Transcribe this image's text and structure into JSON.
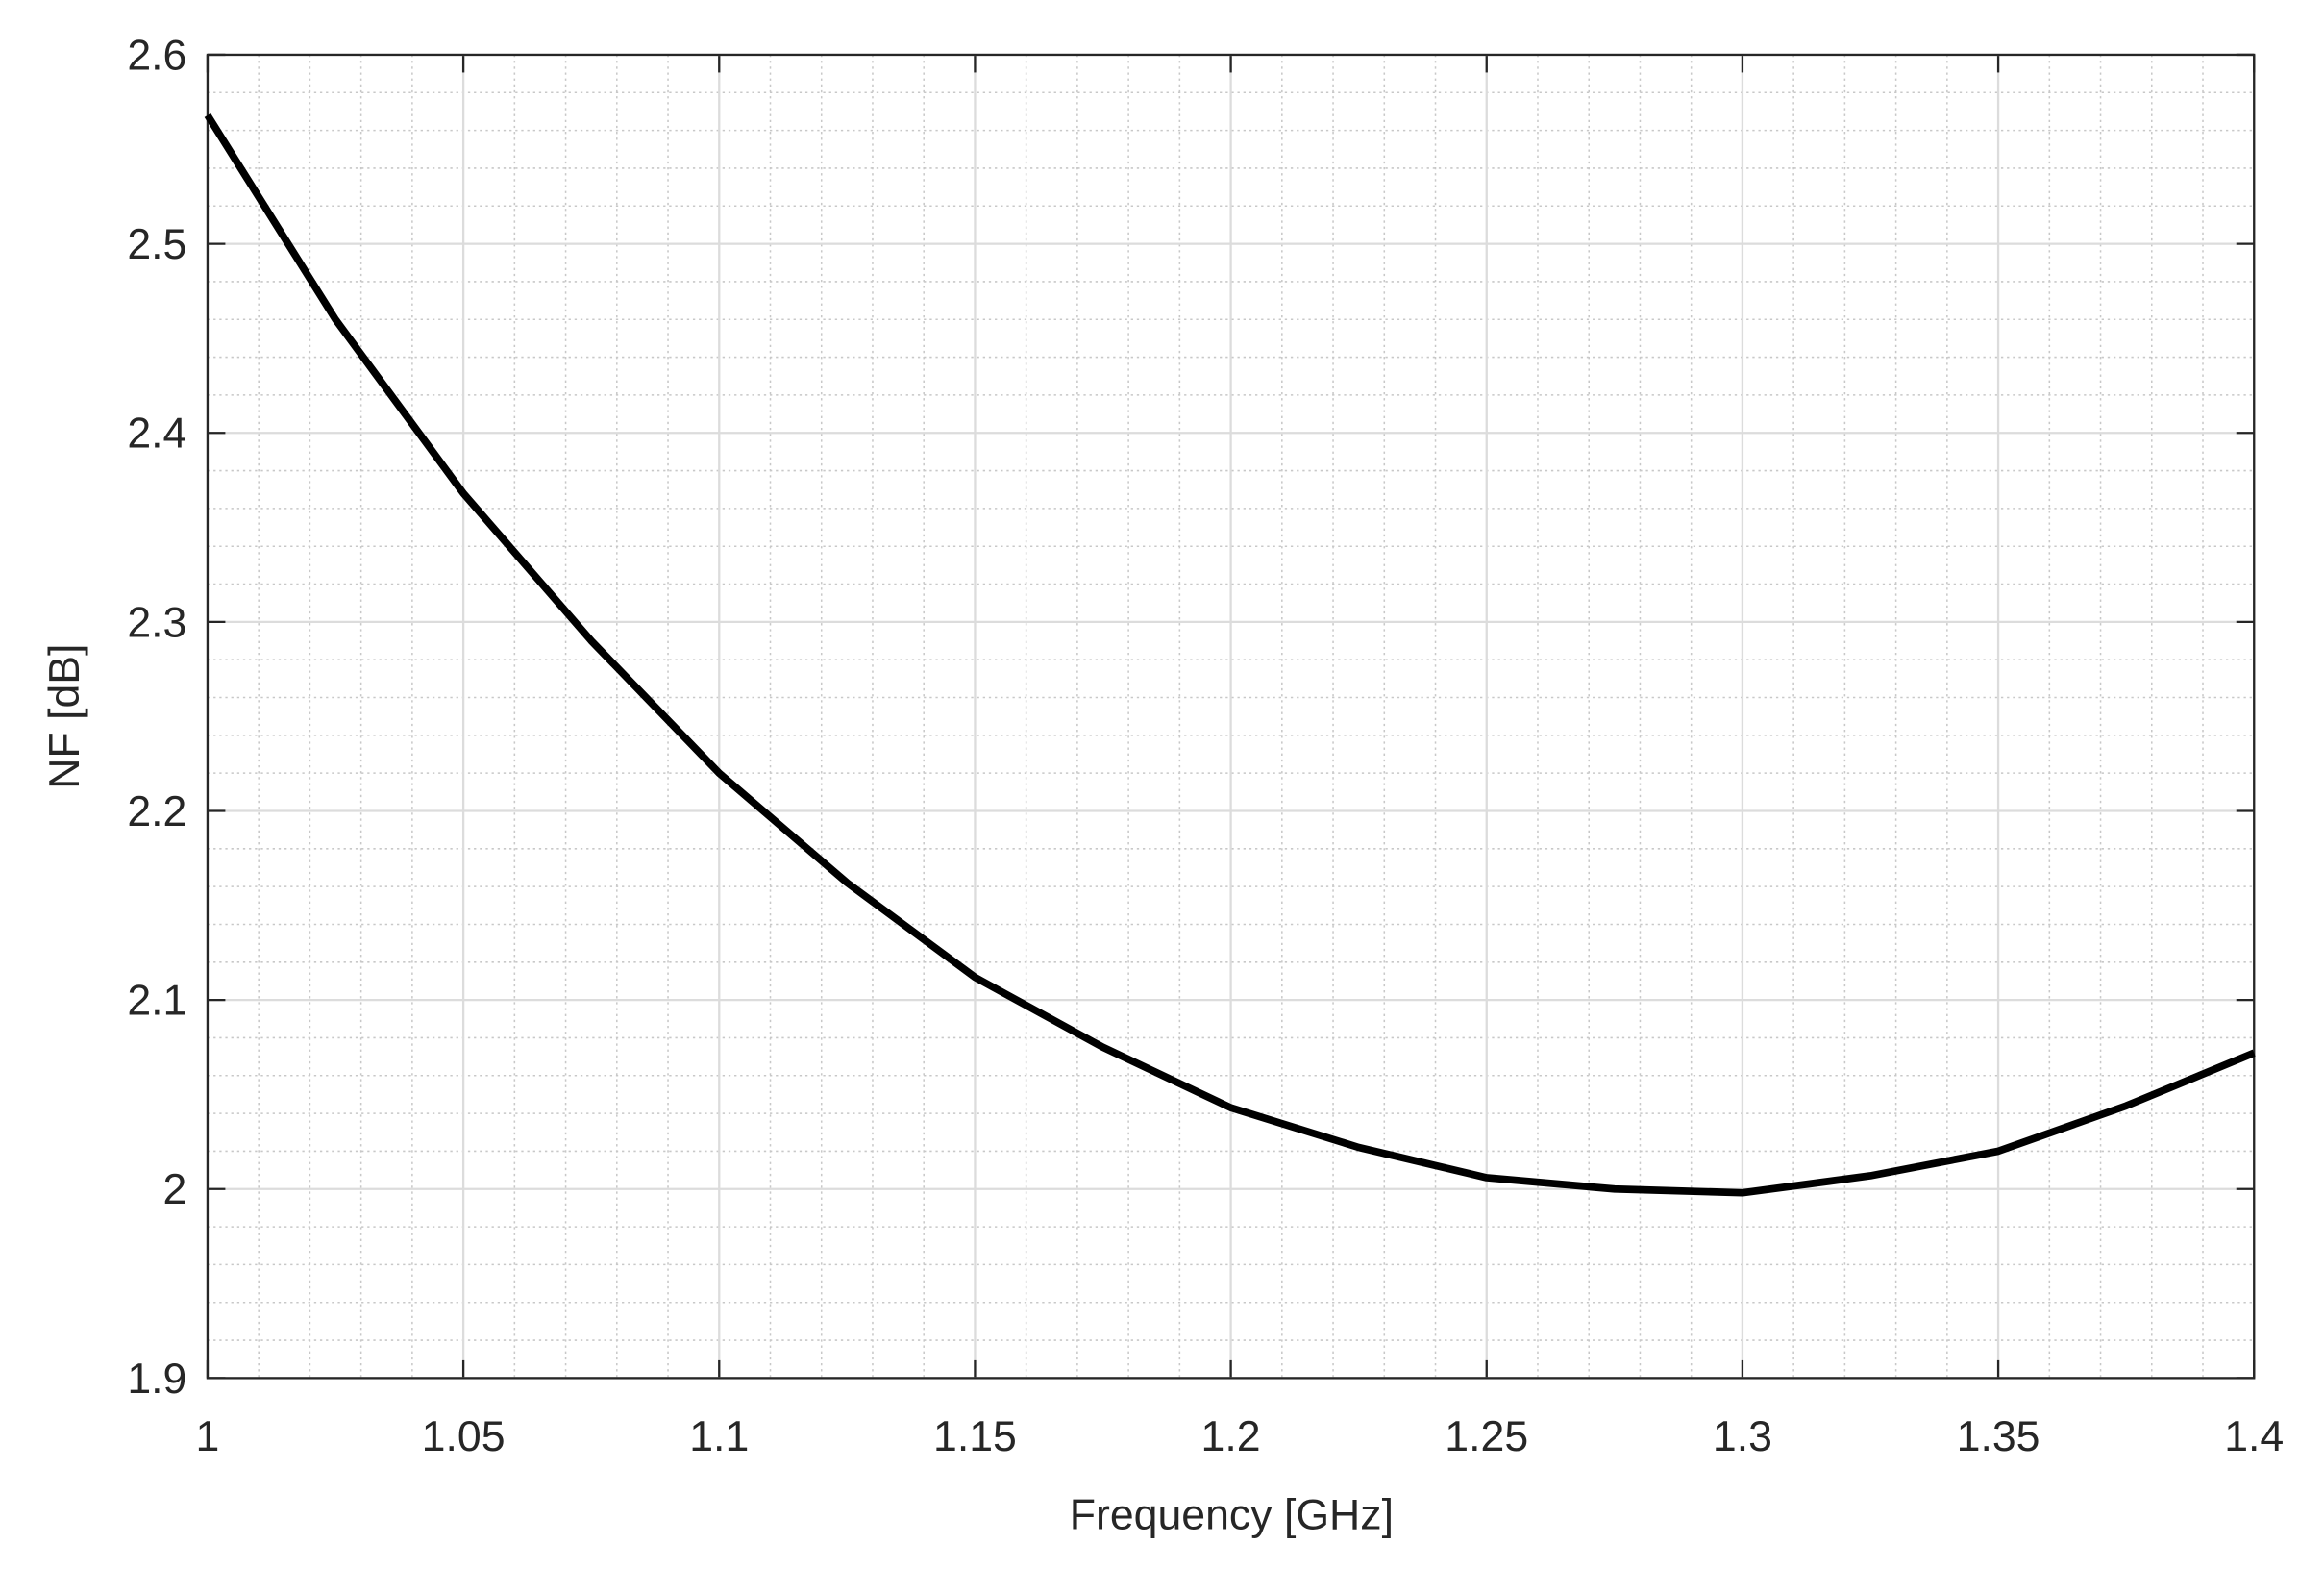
{
  "chart_data": {
    "type": "line",
    "x_label": "Frequency [GHz]",
    "y_label": "NF [dB]",
    "x": [
      1.0,
      1.025,
      1.05,
      1.075,
      1.1,
      1.125,
      1.15,
      1.175,
      1.2,
      1.225,
      1.25,
      1.275,
      1.3,
      1.325,
      1.35,
      1.375,
      1.4
    ],
    "series": [
      {
        "color": "#000000",
        "values": [
          2.568,
          2.46,
          2.368,
          2.29,
          2.22,
          2.162,
          2.112,
          2.075,
          2.043,
          2.022,
          2.006,
          2.0,
          1.998,
          2.007,
          2.02,
          2.044,
          2.072
        ]
      }
    ],
    "xlim": [
      1,
      1.4
    ],
    "xticks": [
      1,
      1.05,
      1.1,
      1.15,
      1.2,
      1.25,
      1.3,
      1.35,
      1.4
    ],
    "ylim": [
      1.9,
      2.6
    ],
    "yticks": [
      1.9,
      2,
      2.1,
      2.2,
      2.3,
      2.4,
      2.5,
      2.6
    ],
    "grid": true,
    "minor_grid": true
  }
}
